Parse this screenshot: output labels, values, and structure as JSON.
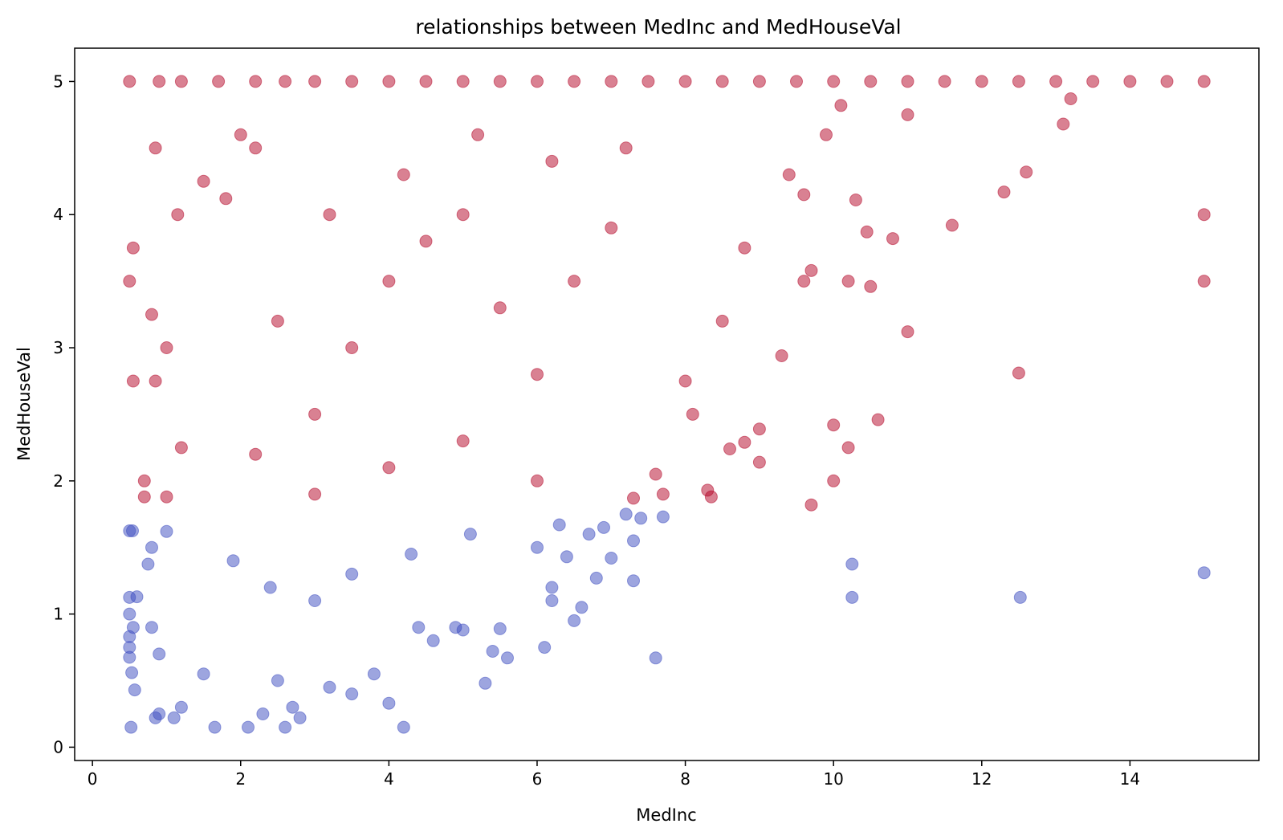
{
  "chart_data": {
    "type": "scatter",
    "title": "relationships between MedInc and MedHouseVal",
    "xlabel": "MedInc",
    "ylabel": "MedHouseVal",
    "xlim": [
      -0.24,
      15.74
    ],
    "ylim": [
      -0.1,
      5.25
    ],
    "xticks": [
      0,
      2,
      4,
      6,
      8,
      10,
      12,
      14
    ],
    "xtick_labels": [
      "0",
      "2",
      "4",
      "6",
      "8",
      "10",
      "12",
      "14"
    ],
    "yticks": [
      0,
      1,
      2,
      3,
      4,
      5
    ],
    "ytick_labels": [
      "0",
      "1",
      "2",
      "3",
      "4",
      "5"
    ],
    "grid": false,
    "legend": "none",
    "marker_alpha": 0.5,
    "series": [
      {
        "color": "#3b4cc0",
        "points": [
          [
            0.54,
            1.625
          ],
          [
            0.5,
            1.625
          ],
          [
            0.5,
            1.125
          ],
          [
            0.55,
            0.9
          ],
          [
            0.5,
            0.75
          ],
          [
            0.53,
            0.56
          ],
          [
            0.5,
            1.0
          ],
          [
            0.57,
            0.43
          ],
          [
            0.5,
            0.675
          ],
          [
            0.5,
            0.83
          ],
          [
            0.52,
            0.15
          ],
          [
            0.6,
            1.13
          ],
          [
            0.75,
            1.375
          ],
          [
            0.8,
            0.9
          ],
          [
            0.85,
            0.22
          ],
          [
            0.9,
            0.25
          ],
          [
            1.1,
            0.22
          ],
          [
            0.8,
            1.5
          ],
          [
            0.9,
            0.7
          ],
          [
            1.2,
            0.3
          ],
          [
            1.0,
            1.62
          ],
          [
            1.5,
            0.55
          ],
          [
            1.65,
            0.15
          ],
          [
            2.1,
            0.15
          ],
          [
            2.3,
            0.25
          ],
          [
            2.6,
            0.15
          ],
          [
            2.7,
            0.3
          ],
          [
            2.8,
            0.22
          ],
          [
            3.5,
            0.4
          ],
          [
            4.0,
            0.33
          ],
          [
            4.2,
            0.15
          ],
          [
            5.3,
            0.48
          ],
          [
            5.4,
            0.72
          ],
          [
            5.6,
            0.67
          ],
          [
            5.5,
            0.89
          ],
          [
            5.0,
            0.88
          ],
          [
            6.1,
            0.75
          ],
          [
            6.2,
            1.1
          ],
          [
            6.2,
            1.2
          ],
          [
            6.5,
            0.95
          ],
          [
            6.6,
            1.05
          ],
          [
            6.8,
            1.27
          ],
          [
            7.0,
            1.42
          ],
          [
            7.3,
            1.25
          ],
          [
            7.3,
            1.55
          ],
          [
            7.6,
            0.67
          ],
          [
            7.2,
            1.75
          ],
          [
            7.4,
            1.72
          ],
          [
            7.7,
            1.73
          ],
          [
            6.9,
            1.65
          ],
          [
            6.7,
            1.6
          ],
          [
            6.4,
            1.43
          ],
          [
            6.0,
            1.5
          ],
          [
            6.3,
            1.67
          ],
          [
            10.25,
            1.375
          ],
          [
            10.25,
            1.125
          ],
          [
            12.52,
            1.125
          ],
          [
            15.0,
            1.31
          ],
          [
            4.4,
            0.9
          ],
          [
            4.9,
            0.9
          ],
          [
            4.6,
            0.8
          ],
          [
            3.8,
            0.55
          ],
          [
            3.2,
            0.45
          ],
          [
            2.5,
            0.5
          ],
          [
            1.9,
            1.4
          ],
          [
            2.4,
            1.2
          ],
          [
            3.0,
            1.1
          ],
          [
            3.5,
            1.3
          ],
          [
            4.3,
            1.45
          ],
          [
            5.1,
            1.6
          ]
        ]
      },
      {
        "color": "#b40426",
        "points": [
          [
            0.5,
            5.0
          ],
          [
            0.9,
            5.0
          ],
          [
            1.2,
            5.0
          ],
          [
            1.7,
            5.0
          ],
          [
            2.2,
            5.0
          ],
          [
            2.6,
            5.0
          ],
          [
            3.0,
            5.0
          ],
          [
            3.5,
            5.0
          ],
          [
            4.0,
            5.0
          ],
          [
            4.5,
            5.0
          ],
          [
            5.0,
            5.0
          ],
          [
            5.5,
            5.0
          ],
          [
            6.0,
            5.0
          ],
          [
            6.5,
            5.0
          ],
          [
            7.0,
            5.0
          ],
          [
            7.5,
            5.0
          ],
          [
            8.0,
            5.0
          ],
          [
            8.5,
            5.0
          ],
          [
            9.0,
            5.0
          ],
          [
            9.5,
            5.0
          ],
          [
            10.0,
            5.0
          ],
          [
            10.5,
            5.0
          ],
          [
            11.0,
            5.0
          ],
          [
            11.5,
            5.0
          ],
          [
            12.0,
            5.0
          ],
          [
            12.5,
            5.0
          ],
          [
            13.0,
            5.0
          ],
          [
            13.5,
            5.0
          ],
          [
            14.0,
            5.0
          ],
          [
            14.5,
            5.0
          ],
          [
            15.0,
            5.0
          ],
          [
            0.85,
            4.5
          ],
          [
            0.55,
            3.75
          ],
          [
            0.5,
            3.5
          ],
          [
            0.55,
            2.75
          ],
          [
            0.85,
            2.75
          ],
          [
            0.8,
            3.25
          ],
          [
            1.0,
            3.0
          ],
          [
            1.15,
            4.0
          ],
          [
            1.5,
            4.25
          ],
          [
            0.7,
            2.0
          ],
          [
            0.7,
            1.88
          ],
          [
            1.0,
            1.88
          ],
          [
            1.2,
            2.25
          ],
          [
            1.8,
            4.12
          ],
          [
            2.0,
            4.6
          ],
          [
            2.2,
            4.5
          ],
          [
            13.2,
            4.87
          ],
          [
            13.1,
            4.68
          ],
          [
            12.6,
            4.32
          ],
          [
            12.3,
            4.17
          ],
          [
            11.6,
            3.92
          ],
          [
            10.2,
            3.5
          ],
          [
            10.5,
            3.46
          ],
          [
            11.0,
            3.12
          ],
          [
            12.5,
            2.81
          ],
          [
            10.6,
            2.46
          ],
          [
            10.0,
            2.42
          ],
          [
            10.2,
            2.25
          ],
          [
            10.0,
            2.0
          ],
          [
            9.7,
            1.82
          ],
          [
            9.0,
            2.14
          ],
          [
            9.0,
            2.39
          ],
          [
            8.6,
            2.24
          ],
          [
            8.8,
            2.29
          ],
          [
            8.3,
            1.93
          ],
          [
            8.35,
            1.88
          ],
          [
            9.3,
            2.94
          ],
          [
            9.6,
            3.5
          ],
          [
            9.7,
            3.58
          ],
          [
            10.8,
            3.82
          ],
          [
            10.45,
            3.87
          ],
          [
            10.3,
            4.11
          ],
          [
            15.0,
            4.0
          ],
          [
            15.0,
            3.5
          ],
          [
            7.7,
            1.9
          ],
          [
            7.3,
            1.87
          ],
          [
            7.6,
            2.05
          ],
          [
            8.1,
            2.5
          ],
          [
            8.0,
            2.75
          ],
          [
            8.5,
            3.2
          ],
          [
            8.8,
            3.75
          ],
          [
            9.4,
            4.3
          ],
          [
            9.6,
            4.15
          ],
          [
            9.9,
            4.6
          ],
          [
            10.1,
            4.82
          ],
          [
            11.0,
            4.75
          ],
          [
            2.5,
            3.2
          ],
          [
            3.0,
            2.5
          ],
          [
            3.5,
            3.0
          ],
          [
            4.0,
            3.5
          ],
          [
            4.5,
            3.8
          ],
          [
            5.0,
            4.0
          ],
          [
            5.5,
            3.3
          ],
          [
            6.0,
            2.8
          ],
          [
            6.5,
            3.5
          ],
          [
            7.0,
            3.9
          ],
          [
            3.2,
            4.0
          ],
          [
            4.2,
            4.3
          ],
          [
            5.2,
            4.6
          ],
          [
            6.2,
            4.4
          ],
          [
            7.2,
            4.5
          ],
          [
            2.2,
            2.2
          ],
          [
            3.0,
            1.9
          ],
          [
            4.0,
            2.1
          ],
          [
            5.0,
            2.3
          ],
          [
            6.0,
            2.0
          ]
        ]
      }
    ]
  }
}
